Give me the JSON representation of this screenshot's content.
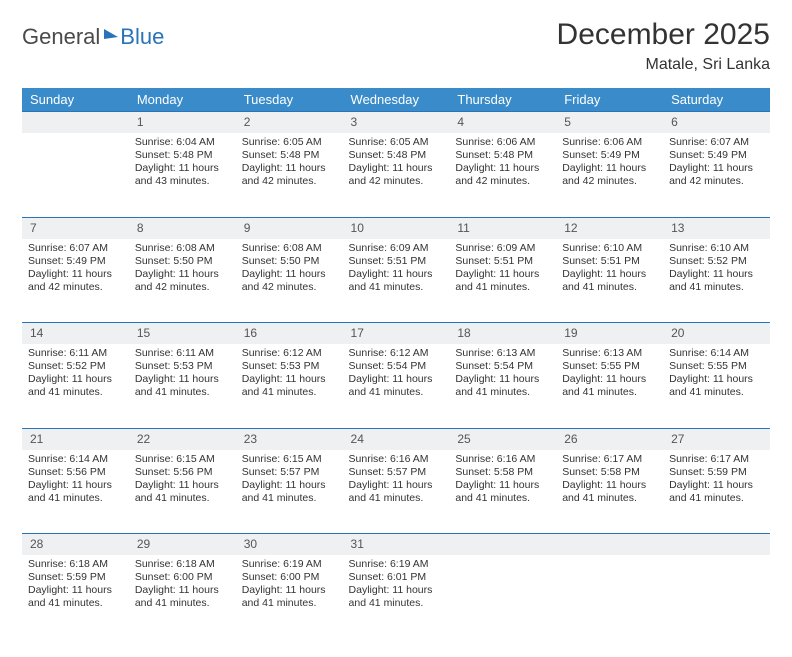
{
  "brand": {
    "part1": "General",
    "part2": "Blue"
  },
  "title": "December 2025",
  "location": "Matale, Sri Lanka",
  "colors": {
    "header_bg": "#3a8bc9",
    "accent": "#2973b8",
    "daynum_bg": "#eef0f2",
    "text": "#333333",
    "page_bg": "#ffffff"
  },
  "typography": {
    "title_fontsize": 30,
    "header_fontsize": 13,
    "cell_fontsize": 10.5
  },
  "weekdays": [
    "Sunday",
    "Monday",
    "Tuesday",
    "Wednesday",
    "Thursday",
    "Friday",
    "Saturday"
  ],
  "weeks": [
    {
      "nums": [
        "",
        "1",
        "2",
        "3",
        "4",
        "5",
        "6"
      ],
      "cells": [
        null,
        {
          "sunrise": "Sunrise: 6:04 AM",
          "sunset": "Sunset: 5:48 PM",
          "day1": "Daylight: 11 hours",
          "day2": "and 43 minutes."
        },
        {
          "sunrise": "Sunrise: 6:05 AM",
          "sunset": "Sunset: 5:48 PM",
          "day1": "Daylight: 11 hours",
          "day2": "and 42 minutes."
        },
        {
          "sunrise": "Sunrise: 6:05 AM",
          "sunset": "Sunset: 5:48 PM",
          "day1": "Daylight: 11 hours",
          "day2": "and 42 minutes."
        },
        {
          "sunrise": "Sunrise: 6:06 AM",
          "sunset": "Sunset: 5:48 PM",
          "day1": "Daylight: 11 hours",
          "day2": "and 42 minutes."
        },
        {
          "sunrise": "Sunrise: 6:06 AM",
          "sunset": "Sunset: 5:49 PM",
          "day1": "Daylight: 11 hours",
          "day2": "and 42 minutes."
        },
        {
          "sunrise": "Sunrise: 6:07 AM",
          "sunset": "Sunset: 5:49 PM",
          "day1": "Daylight: 11 hours",
          "day2": "and 42 minutes."
        }
      ]
    },
    {
      "nums": [
        "7",
        "8",
        "9",
        "10",
        "11",
        "12",
        "13"
      ],
      "cells": [
        {
          "sunrise": "Sunrise: 6:07 AM",
          "sunset": "Sunset: 5:49 PM",
          "day1": "Daylight: 11 hours",
          "day2": "and 42 minutes."
        },
        {
          "sunrise": "Sunrise: 6:08 AM",
          "sunset": "Sunset: 5:50 PM",
          "day1": "Daylight: 11 hours",
          "day2": "and 42 minutes."
        },
        {
          "sunrise": "Sunrise: 6:08 AM",
          "sunset": "Sunset: 5:50 PM",
          "day1": "Daylight: 11 hours",
          "day2": "and 42 minutes."
        },
        {
          "sunrise": "Sunrise: 6:09 AM",
          "sunset": "Sunset: 5:51 PM",
          "day1": "Daylight: 11 hours",
          "day2": "and 41 minutes."
        },
        {
          "sunrise": "Sunrise: 6:09 AM",
          "sunset": "Sunset: 5:51 PM",
          "day1": "Daylight: 11 hours",
          "day2": "and 41 minutes."
        },
        {
          "sunrise": "Sunrise: 6:10 AM",
          "sunset": "Sunset: 5:51 PM",
          "day1": "Daylight: 11 hours",
          "day2": "and 41 minutes."
        },
        {
          "sunrise": "Sunrise: 6:10 AM",
          "sunset": "Sunset: 5:52 PM",
          "day1": "Daylight: 11 hours",
          "day2": "and 41 minutes."
        }
      ]
    },
    {
      "nums": [
        "14",
        "15",
        "16",
        "17",
        "18",
        "19",
        "20"
      ],
      "cells": [
        {
          "sunrise": "Sunrise: 6:11 AM",
          "sunset": "Sunset: 5:52 PM",
          "day1": "Daylight: 11 hours",
          "day2": "and 41 minutes."
        },
        {
          "sunrise": "Sunrise: 6:11 AM",
          "sunset": "Sunset: 5:53 PM",
          "day1": "Daylight: 11 hours",
          "day2": "and 41 minutes."
        },
        {
          "sunrise": "Sunrise: 6:12 AM",
          "sunset": "Sunset: 5:53 PM",
          "day1": "Daylight: 11 hours",
          "day2": "and 41 minutes."
        },
        {
          "sunrise": "Sunrise: 6:12 AM",
          "sunset": "Sunset: 5:54 PM",
          "day1": "Daylight: 11 hours",
          "day2": "and 41 minutes."
        },
        {
          "sunrise": "Sunrise: 6:13 AM",
          "sunset": "Sunset: 5:54 PM",
          "day1": "Daylight: 11 hours",
          "day2": "and 41 minutes."
        },
        {
          "sunrise": "Sunrise: 6:13 AM",
          "sunset": "Sunset: 5:55 PM",
          "day1": "Daylight: 11 hours",
          "day2": "and 41 minutes."
        },
        {
          "sunrise": "Sunrise: 6:14 AM",
          "sunset": "Sunset: 5:55 PM",
          "day1": "Daylight: 11 hours",
          "day2": "and 41 minutes."
        }
      ]
    },
    {
      "nums": [
        "21",
        "22",
        "23",
        "24",
        "25",
        "26",
        "27"
      ],
      "cells": [
        {
          "sunrise": "Sunrise: 6:14 AM",
          "sunset": "Sunset: 5:56 PM",
          "day1": "Daylight: 11 hours",
          "day2": "and 41 minutes."
        },
        {
          "sunrise": "Sunrise: 6:15 AM",
          "sunset": "Sunset: 5:56 PM",
          "day1": "Daylight: 11 hours",
          "day2": "and 41 minutes."
        },
        {
          "sunrise": "Sunrise: 6:15 AM",
          "sunset": "Sunset: 5:57 PM",
          "day1": "Daylight: 11 hours",
          "day2": "and 41 minutes."
        },
        {
          "sunrise": "Sunrise: 6:16 AM",
          "sunset": "Sunset: 5:57 PM",
          "day1": "Daylight: 11 hours",
          "day2": "and 41 minutes."
        },
        {
          "sunrise": "Sunrise: 6:16 AM",
          "sunset": "Sunset: 5:58 PM",
          "day1": "Daylight: 11 hours",
          "day2": "and 41 minutes."
        },
        {
          "sunrise": "Sunrise: 6:17 AM",
          "sunset": "Sunset: 5:58 PM",
          "day1": "Daylight: 11 hours",
          "day2": "and 41 minutes."
        },
        {
          "sunrise": "Sunrise: 6:17 AM",
          "sunset": "Sunset: 5:59 PM",
          "day1": "Daylight: 11 hours",
          "day2": "and 41 minutes."
        }
      ]
    },
    {
      "nums": [
        "28",
        "29",
        "30",
        "31",
        "",
        "",
        ""
      ],
      "cells": [
        {
          "sunrise": "Sunrise: 6:18 AM",
          "sunset": "Sunset: 5:59 PM",
          "day1": "Daylight: 11 hours",
          "day2": "and 41 minutes."
        },
        {
          "sunrise": "Sunrise: 6:18 AM",
          "sunset": "Sunset: 6:00 PM",
          "day1": "Daylight: 11 hours",
          "day2": "and 41 minutes."
        },
        {
          "sunrise": "Sunrise: 6:19 AM",
          "sunset": "Sunset: 6:00 PM",
          "day1": "Daylight: 11 hours",
          "day2": "and 41 minutes."
        },
        {
          "sunrise": "Sunrise: 6:19 AM",
          "sunset": "Sunset: 6:01 PM",
          "day1": "Daylight: 11 hours",
          "day2": "and 41 minutes."
        },
        null,
        null,
        null
      ]
    }
  ]
}
